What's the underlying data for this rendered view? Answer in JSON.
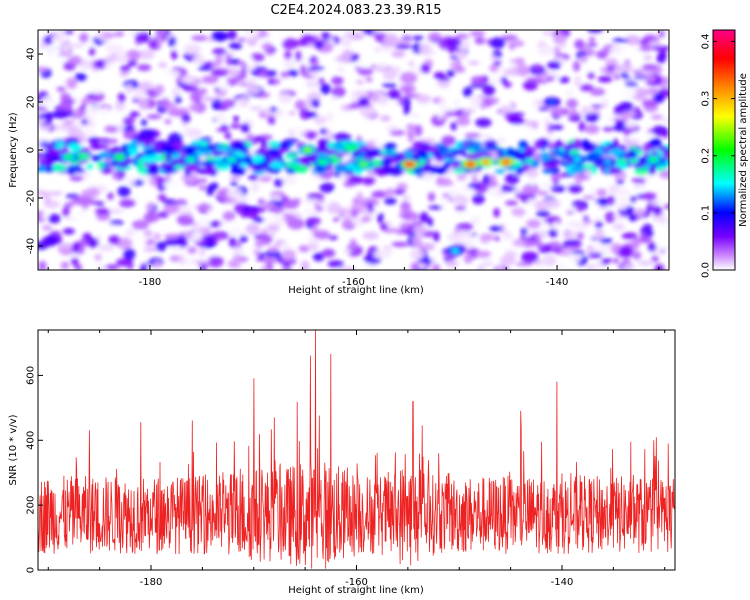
{
  "title": "C2E4.2024.083.23.39.R15",
  "chart_data": [
    {
      "type": "heatmap",
      "xlabel": "Height of straight line (km)",
      "ylabel": "Frequency (Hz)",
      "xlim": [
        -191,
        -129
      ],
      "ylim": [
        -50,
        50
      ],
      "x_ticks": [
        -180,
        -160,
        -140
      ],
      "y_ticks": [
        -40,
        -20,
        0,
        20,
        40
      ],
      "colorbar": {
        "label": "Normalized spectral amplitude",
        "range": [
          0,
          0.42
        ],
        "ticks": [
          0.0,
          0.1,
          0.2,
          0.3,
          0.4
        ],
        "colormap": [
          "#ffffff",
          "#cc88ff",
          "#7700ff",
          "#0000ff",
          "#00ffff",
          "#00ff00",
          "#ffff00",
          "#ff8800",
          "#ff0000",
          "#ff0088"
        ]
      },
      "hotspots": [
        {
          "x": -188,
          "y": -3,
          "value": 0.2
        },
        {
          "x": -183,
          "y": -3,
          "value": 0.22
        },
        {
          "x": -176,
          "y": -4,
          "value": 0.18
        },
        {
          "x": -172,
          "y": -4,
          "value": 0.18
        },
        {
          "x": -164.5,
          "y": 0,
          "value": 0.24
        },
        {
          "x": -163,
          "y": -5,
          "value": 0.2
        },
        {
          "x": -159,
          "y": -6,
          "value": 0.23
        },
        {
          "x": -154.5,
          "y": -6,
          "value": 0.4
        },
        {
          "x": -148.5,
          "y": -6,
          "value": 0.38
        },
        {
          "x": -147,
          "y": -5,
          "value": 0.32
        },
        {
          "x": -145,
          "y": -5,
          "value": 0.36
        },
        {
          "x": -138,
          "y": -4,
          "value": 0.15
        },
        {
          "x": -135,
          "y": -5,
          "value": 0.14
        },
        {
          "x": -130.5,
          "y": -4,
          "value": 0.2
        },
        {
          "x": -150,
          "y": -42,
          "value": 0.15
        },
        {
          "x": -140.5,
          "y": 20,
          "value": 0.12
        }
      ]
    },
    {
      "type": "line",
      "xlabel": "Height of straight line (km)",
      "ylabel": "SNR (10 * v/v)",
      "xlim": [
        -191,
        -129
      ],
      "ylim": [
        0,
        740
      ],
      "x_ticks": [
        -180,
        -160,
        -140
      ],
      "y_ticks": [
        0,
        200,
        400,
        600
      ],
      "color": "#ee2222",
      "baseline_mean": 170,
      "peaks": [
        {
          "x": -186,
          "y": 430
        },
        {
          "x": -181,
          "y": 455
        },
        {
          "x": -176,
          "y": 460
        },
        {
          "x": -170,
          "y": 590
        },
        {
          "x": -168,
          "y": 470
        },
        {
          "x": -164.5,
          "y": 660
        },
        {
          "x": -164,
          "y": 740
        },
        {
          "x": -162.5,
          "y": 665
        },
        {
          "x": -154.5,
          "y": 520
        },
        {
          "x": -144,
          "y": 490
        },
        {
          "x": -140.5,
          "y": 580
        }
      ]
    }
  ]
}
